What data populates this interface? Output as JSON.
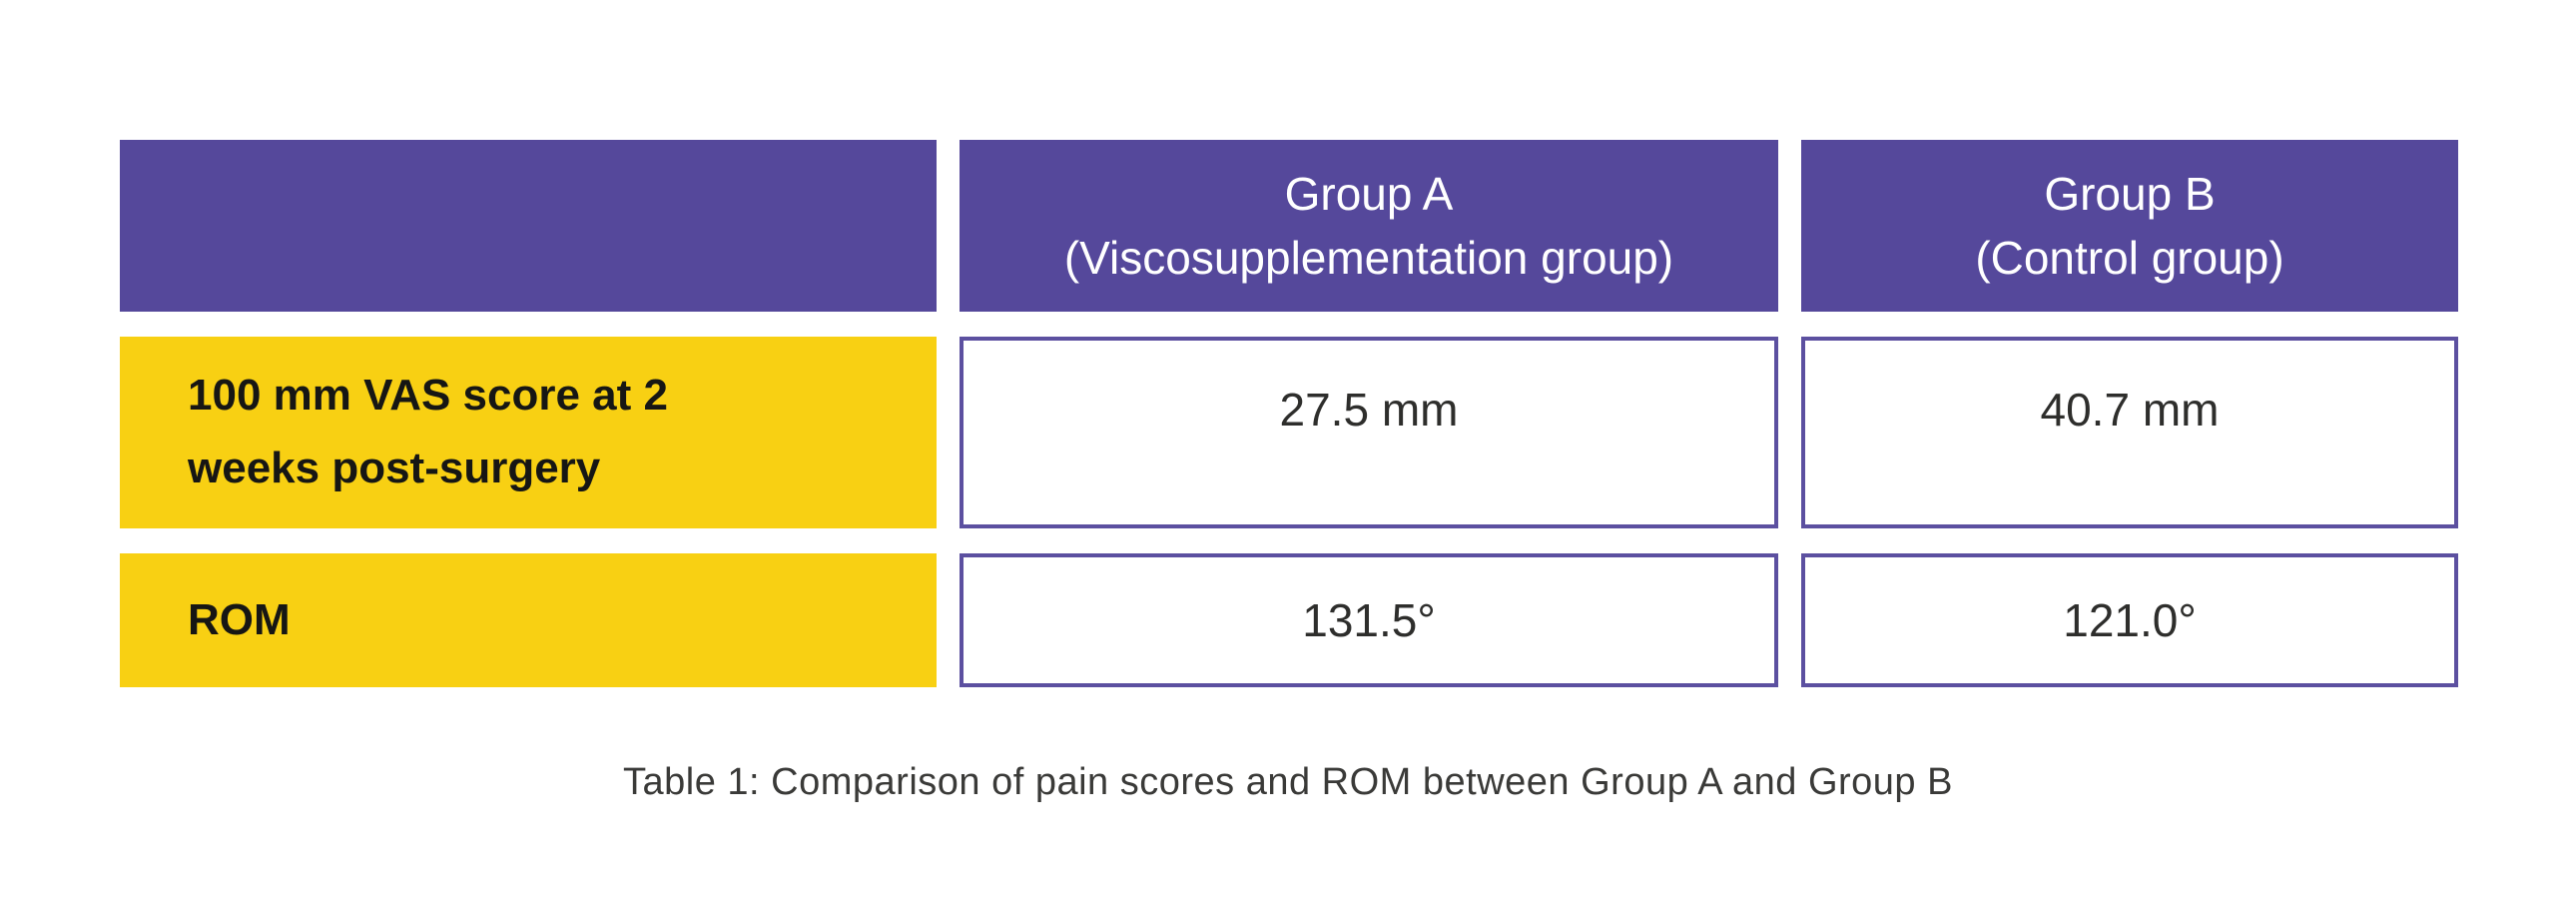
{
  "figure": {
    "caption": "Table 1: Comparison of pain scores and ROM between Group A and Group B"
  },
  "colors": {
    "page_bg": "#FFFFFF",
    "header_bg": "#55489B",
    "header_text": "#FFFFFF",
    "label_bg": "#F8D013",
    "label_text": "#161614",
    "value_cell_bg": "#FFFFFF",
    "value_cell_border": "#5C50A0",
    "value_text": "#2E2E2C",
    "caption_text": "#3A3A38"
  },
  "table": {
    "column_headers": [
      {
        "text": ""
      },
      {
        "text": "Group A\n(Viscosupplementation group)"
      },
      {
        "text": "Group B\n(Control group)"
      }
    ],
    "rows": [
      {
        "label": "100 mm VAS score at 2\nweeks post-surgery",
        "group_a_value": "27.5 mm",
        "group_b_value": "40.7 mm"
      },
      {
        "label": "ROM",
        "group_a_value": "131.5°",
        "group_b_value": "121.0°"
      }
    ]
  },
  "chart_data": {
    "type": "table",
    "title": "Table 1: Comparison of pain scores and ROM between Group A and Group B",
    "columns": [
      "",
      "Group A (Viscosupplementation group)",
      "Group B (Control group)"
    ],
    "rows": [
      [
        "100 mm VAS score at 2 weeks post-surgery",
        "27.5 mm",
        "40.7 mm"
      ],
      [
        "ROM",
        "131.5°",
        "121.0°"
      ]
    ],
    "measures": [
      {
        "metric": "100 mm VAS score at 2 weeks post-surgery",
        "group_a": 27.5,
        "group_b": 40.7,
        "unit": "mm"
      },
      {
        "metric": "ROM",
        "group_a": 131.5,
        "group_b": 121.0,
        "unit": "degrees"
      }
    ]
  }
}
